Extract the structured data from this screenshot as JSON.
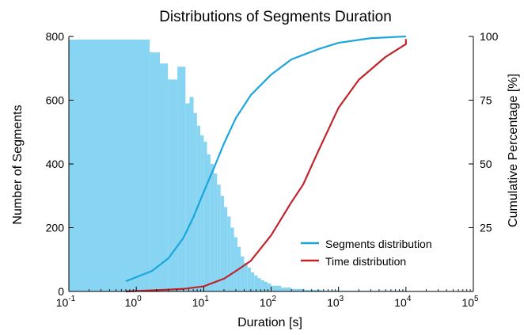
{
  "chart_data": {
    "type": "bar+line",
    "title": "Distributions of Segments Duration",
    "xlabel": "Duration [s]",
    "ylabel_left": "Number of Segments",
    "ylabel_right": "Cumulative Percentage [%]",
    "x_scale": "log",
    "xlim": [
      0.1,
      100000
    ],
    "ylim_left": [
      0,
      800
    ],
    "ylim_right": [
      0,
      100
    ],
    "x_ticks": [
      {
        "base": "10",
        "exp": "-1",
        "value": 0.1
      },
      {
        "base": "10",
        "exp": "0",
        "value": 1
      },
      {
        "base": "10",
        "exp": "1",
        "value": 10
      },
      {
        "base": "10",
        "exp": "2",
        "value": 100
      },
      {
        "base": "10",
        "exp": "3",
        "value": 1000
      },
      {
        "base": "10",
        "exp": "4",
        "value": 10000
      },
      {
        "base": "10",
        "exp": "5",
        "value": 100000
      }
    ],
    "y_left_ticks": [
      "0",
      "200",
      "400",
      "600",
      "800"
    ],
    "y_right_ticks": [
      {
        "label": "25",
        "value": 25
      },
      {
        "label": "50",
        "value": 50
      },
      {
        "label": "75",
        "value": 75
      },
      {
        "label": "100",
        "value": 100
      }
    ],
    "histogram": {
      "color": "#87d5f2",
      "bins": [
        {
          "x0": 0.1,
          "x1": 1.58,
          "count": 790
        },
        {
          "x0": 1.58,
          "x1": 2.24,
          "count": 750
        },
        {
          "x0": 2.24,
          "x1": 2.95,
          "count": 715
        },
        {
          "x0": 2.95,
          "x1": 3.55,
          "count": 665
        },
        {
          "x0": 3.55,
          "x1": 4.07,
          "count": 665
        },
        {
          "x0": 4.07,
          "x1": 5.37,
          "count": 705
        },
        {
          "x0": 5.37,
          "x1": 6.17,
          "count": 590
        },
        {
          "x0": 6.17,
          "x1": 7.08,
          "count": 610
        },
        {
          "x0": 7.08,
          "x1": 7.94,
          "count": 560
        },
        {
          "x0": 7.94,
          "x1": 8.91,
          "count": 520
        },
        {
          "x0": 8.91,
          "x1": 10.0,
          "count": 490
        },
        {
          "x0": 10.0,
          "x1": 11.2,
          "count": 470
        },
        {
          "x0": 11.2,
          "x1": 12.6,
          "count": 430
        },
        {
          "x0": 12.6,
          "x1": 14.1,
          "count": 400
        },
        {
          "x0": 14.1,
          "x1": 15.8,
          "count": 370
        },
        {
          "x0": 15.8,
          "x1": 17.8,
          "count": 335
        },
        {
          "x0": 17.8,
          "x1": 20.0,
          "count": 300
        },
        {
          "x0": 20.0,
          "x1": 22.4,
          "count": 265
        },
        {
          "x0": 22.4,
          "x1": 25.1,
          "count": 235
        },
        {
          "x0": 25.1,
          "x1": 28.2,
          "count": 200
        },
        {
          "x0": 28.2,
          "x1": 31.6,
          "count": 170
        },
        {
          "x0": 31.6,
          "x1": 35.5,
          "count": 140
        },
        {
          "x0": 35.5,
          "x1": 39.8,
          "count": 110
        },
        {
          "x0": 39.8,
          "x1": 44.7,
          "count": 90
        },
        {
          "x0": 44.7,
          "x1": 50.1,
          "count": 75
        },
        {
          "x0": 50.1,
          "x1": 56.2,
          "count": 60
        },
        {
          "x0": 56.2,
          "x1": 63.1,
          "count": 50
        },
        {
          "x0": 63.1,
          "x1": 70.8,
          "count": 42
        },
        {
          "x0": 70.8,
          "x1": 79.4,
          "count": 35
        },
        {
          "x0": 79.4,
          "x1": 89.1,
          "count": 30
        },
        {
          "x0": 89.1,
          "x1": 100,
          "count": 25
        },
        {
          "x0": 100,
          "x1": 141,
          "count": 18
        },
        {
          "x0": 141,
          "x1": 200,
          "count": 12
        },
        {
          "x0": 200,
          "x1": 316,
          "count": 8
        },
        {
          "x0": 316,
          "x1": 562,
          "count": 5
        },
        {
          "x0": 562,
          "x1": 1000,
          "count": 3
        },
        {
          "x0": 1000,
          "x1": 10000,
          "count": 2
        },
        {
          "x0": 10000,
          "x1": 100000,
          "count": 1
        }
      ]
    },
    "series": [
      {
        "name": "Segments distribution",
        "color": "#1aa6dd",
        "points": [
          [
            0.7,
            4
          ],
          [
            1.7,
            8
          ],
          [
            3,
            13
          ],
          [
            5,
            21
          ],
          [
            7,
            29
          ],
          [
            10,
            39
          ],
          [
            14,
            48
          ],
          [
            20,
            58
          ],
          [
            30,
            68
          ],
          [
            50,
            77
          ],
          [
            100,
            85
          ],
          [
            200,
            91
          ],
          [
            500,
            95
          ],
          [
            1000,
            97.5
          ],
          [
            3000,
            99.3
          ],
          [
            10000,
            100
          ]
        ]
      },
      {
        "name": "Time distribution",
        "color": "#c0242c",
        "points": [
          [
            0.7,
            0
          ],
          [
            2,
            0.5
          ],
          [
            5,
            1
          ],
          [
            10,
            2
          ],
          [
            20,
            5
          ],
          [
            30,
            8
          ],
          [
            50,
            12
          ],
          [
            100,
            22
          ],
          [
            200,
            35
          ],
          [
            300,
            42
          ],
          [
            500,
            55
          ],
          [
            1000,
            72
          ],
          [
            2000,
            83
          ],
          [
            5000,
            92
          ],
          [
            10000,
            97
          ],
          [
            10000,
            99
          ]
        ]
      }
    ],
    "legend_position": "bottom-right"
  }
}
